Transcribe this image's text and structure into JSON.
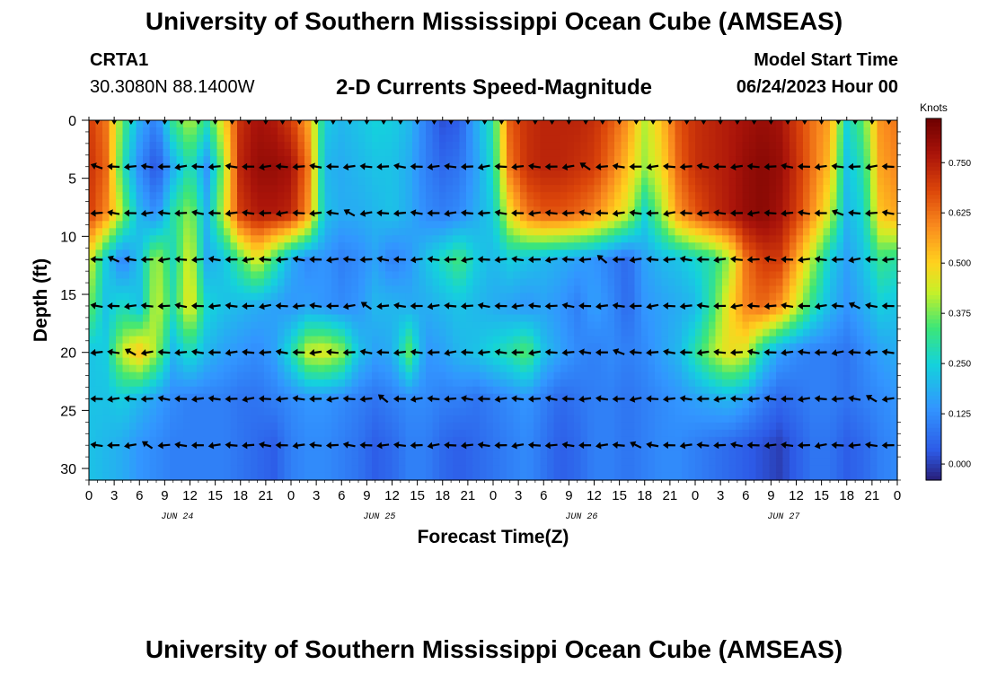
{
  "header": {
    "title": "University of Southern Mississippi Ocean Cube (AMSEAS)",
    "station": "CRTA1",
    "coordinates": "30.3080N  88.1400W",
    "subtitle": "2-D Currents Speed-Magnitude",
    "model_start_label": "Model Start Time",
    "model_start_value": "06/24/2023 Hour 00"
  },
  "footer": {
    "title": "University of Southern Mississippi Ocean Cube (AMSEAS)"
  },
  "chart_data": {
    "type": "heatmap",
    "title": "2-D Currents Speed-Magnitude",
    "xlabel": "Forecast Time(Z)",
    "ylabel": "Depth (ft)",
    "x_range_hours": [
      0,
      96
    ],
    "x_tick_labels": [
      "0",
      "3",
      "6",
      "9",
      "12",
      "15",
      "18",
      "21",
      "0",
      "3",
      "6",
      "9",
      "12",
      "15",
      "18",
      "21",
      "0",
      "3",
      "6",
      "9",
      "12",
      "15",
      "18",
      "21",
      "0",
      "3",
      "6",
      "9",
      "12",
      "15",
      "18",
      "21",
      "0"
    ],
    "date_labels": [
      "JUN 24",
      "JUN 25",
      "JUN 26",
      "JUN 27"
    ],
    "date_label_hours": [
      10.5,
      34.5,
      58.5,
      82.5
    ],
    "y_range_ft": [
      0,
      31
    ],
    "y_tick_labels": [
      "0",
      "5",
      "10",
      "15",
      "20",
      "25",
      "30"
    ],
    "y_ticks_ft": [
      0,
      5,
      10,
      15,
      20,
      25,
      30
    ],
    "depth_levels_ft": [
      0,
      4,
      8,
      12,
      16,
      20,
      24,
      28
    ],
    "time_hours": [
      0,
      2,
      4,
      6,
      8,
      10,
      12,
      14,
      16,
      18,
      20,
      22,
      24,
      26,
      28,
      30,
      32,
      34,
      36,
      38,
      40,
      42,
      44,
      46,
      48,
      50,
      52,
      54,
      56,
      58,
      60,
      62,
      64,
      66,
      68,
      70,
      72,
      74,
      76,
      78,
      80,
      82,
      84,
      86,
      88,
      90,
      92,
      94,
      96
    ],
    "speed_knots": [
      [
        0.7,
        0.62,
        0.35,
        0.18,
        0.1,
        0.32,
        0.42,
        0.3,
        0.48,
        0.72,
        0.78,
        0.76,
        0.7,
        0.56,
        0.24,
        0.2,
        0.22,
        0.25,
        0.24,
        0.2,
        0.1,
        0.02,
        0.04,
        0.18,
        0.3,
        0.65,
        0.72,
        0.74,
        0.74,
        0.74,
        0.72,
        0.66,
        0.58,
        0.42,
        0.52,
        0.66,
        0.72,
        0.74,
        0.76,
        0.78,
        0.8,
        0.78,
        0.7,
        0.62,
        0.56,
        0.26,
        0.36,
        0.58,
        0.62
      ],
      [
        0.72,
        0.64,
        0.3,
        0.12,
        0.02,
        0.18,
        0.3,
        0.14,
        0.4,
        0.74,
        0.8,
        0.8,
        0.78,
        0.62,
        0.2,
        0.18,
        0.2,
        0.22,
        0.22,
        0.18,
        0.1,
        0.06,
        0.08,
        0.16,
        0.28,
        0.62,
        0.72,
        0.74,
        0.74,
        0.72,
        0.7,
        0.62,
        0.52,
        0.4,
        0.48,
        0.64,
        0.72,
        0.74,
        0.76,
        0.8,
        0.82,
        0.8,
        0.72,
        0.62,
        0.52,
        0.22,
        0.3,
        0.56,
        0.6
      ],
      [
        0.7,
        0.6,
        0.4,
        0.2,
        0.12,
        0.3,
        0.4,
        0.2,
        0.44,
        0.7,
        0.76,
        0.76,
        0.74,
        0.58,
        0.22,
        0.18,
        0.18,
        0.2,
        0.22,
        0.18,
        0.12,
        0.1,
        0.12,
        0.18,
        0.24,
        0.48,
        0.62,
        0.66,
        0.66,
        0.64,
        0.6,
        0.52,
        0.44,
        0.26,
        0.4,
        0.58,
        0.66,
        0.72,
        0.76,
        0.8,
        0.82,
        0.78,
        0.7,
        0.58,
        0.44,
        0.2,
        0.26,
        0.52,
        0.56
      ],
      [
        0.46,
        0.24,
        0.1,
        0.22,
        0.42,
        0.28,
        0.46,
        0.18,
        0.22,
        0.34,
        0.46,
        0.32,
        0.18,
        0.12,
        0.14,
        0.1,
        0.12,
        0.16,
        0.1,
        0.14,
        0.22,
        0.28,
        0.34,
        0.24,
        0.2,
        0.24,
        0.22,
        0.2,
        0.18,
        0.16,
        0.14,
        0.1,
        0.06,
        0.16,
        0.2,
        0.22,
        0.26,
        0.3,
        0.4,
        0.62,
        0.7,
        0.7,
        0.56,
        0.4,
        0.24,
        0.16,
        0.22,
        0.32,
        0.3
      ],
      [
        0.38,
        0.22,
        0.28,
        0.22,
        0.44,
        0.3,
        0.48,
        0.26,
        0.22,
        0.2,
        0.18,
        0.16,
        0.14,
        0.16,
        0.14,
        0.12,
        0.14,
        0.2,
        0.2,
        0.18,
        0.18,
        0.2,
        0.22,
        0.2,
        0.18,
        0.16,
        0.14,
        0.16,
        0.14,
        0.1,
        0.16,
        0.12,
        0.06,
        0.14,
        0.16,
        0.18,
        0.2,
        0.32,
        0.48,
        0.6,
        0.64,
        0.58,
        0.44,
        0.3,
        0.2,
        0.14,
        0.18,
        0.24,
        0.22
      ],
      [
        0.22,
        0.24,
        0.44,
        0.52,
        0.4,
        0.2,
        0.28,
        0.2,
        0.16,
        0.14,
        0.12,
        0.16,
        0.28,
        0.44,
        0.46,
        0.4,
        0.22,
        0.16,
        0.18,
        0.36,
        0.14,
        0.16,
        0.2,
        0.22,
        0.26,
        0.3,
        0.36,
        0.22,
        0.16,
        0.12,
        0.1,
        0.12,
        0.1,
        0.12,
        0.16,
        0.2,
        0.3,
        0.4,
        0.48,
        0.44,
        0.26,
        0.16,
        0.12,
        0.1,
        0.1,
        0.08,
        0.12,
        0.16,
        0.18
      ],
      [
        0.22,
        0.22,
        0.24,
        0.2,
        0.16,
        0.12,
        0.1,
        0.1,
        0.1,
        0.08,
        0.08,
        0.1,
        0.12,
        0.14,
        0.14,
        0.12,
        0.1,
        0.08,
        0.1,
        0.12,
        0.12,
        0.1,
        0.1,
        0.08,
        0.1,
        0.12,
        0.14,
        0.1,
        0.06,
        0.08,
        0.1,
        0.1,
        0.08,
        0.1,
        0.12,
        0.14,
        0.16,
        0.18,
        0.2,
        0.16,
        0.1,
        0.06,
        0.08,
        0.1,
        0.1,
        0.08,
        0.1,
        0.12,
        0.14
      ],
      [
        0.22,
        0.2,
        0.18,
        0.14,
        0.12,
        0.1,
        0.1,
        0.1,
        0.1,
        0.08,
        0.06,
        0.04,
        0.1,
        0.12,
        0.12,
        0.1,
        0.08,
        0.04,
        0.06,
        0.1,
        0.1,
        0.06,
        0.04,
        0.06,
        0.08,
        0.1,
        0.12,
        0.08,
        0.04,
        0.06,
        0.1,
        0.1,
        0.08,
        0.1,
        0.12,
        0.12,
        0.1,
        0.08,
        0.06,
        0.04,
        0.02,
        0.0,
        0.04,
        0.08,
        0.08,
        0.04,
        0.06,
        0.1,
        0.12
      ]
    ],
    "arrow_hours": [
      1,
      3,
      5,
      7,
      9,
      11,
      13,
      15,
      17,
      19,
      21,
      23,
      25,
      27,
      29,
      31,
      33,
      35,
      37,
      39,
      41,
      43,
      45,
      47,
      49,
      51,
      53,
      55,
      57,
      59,
      61,
      63,
      65,
      67,
      69,
      71,
      73,
      75,
      77,
      79,
      81,
      83,
      85,
      87,
      89,
      91,
      93,
      95
    ],
    "arrow_depths_ft": [
      4,
      8,
      12,
      16,
      20,
      24,
      28
    ],
    "colorbar": {
      "label": "Knots",
      "range": [
        -0.04,
        0.86
      ],
      "tick_values": [
        0.0,
        0.125,
        0.25,
        0.375,
        0.5,
        0.625,
        0.75
      ],
      "tick_labels": [
        "0.000",
        "0.125",
        "0.250",
        "0.375",
        "0.500",
        "0.625",
        "0.750"
      ]
    }
  }
}
